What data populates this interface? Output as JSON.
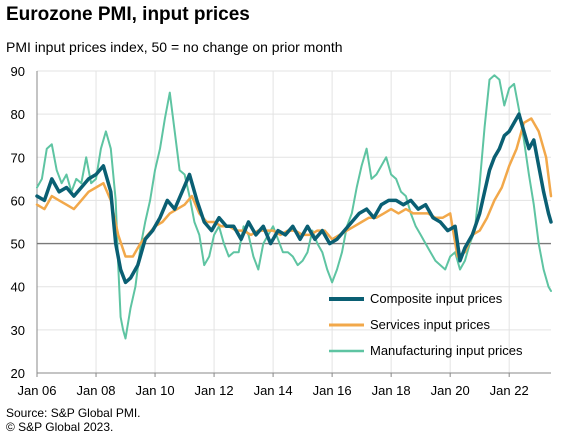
{
  "header": {
    "title": "Eurozone PMI, input prices",
    "subtitle": "PMI input prices index, 50 = no change on prior month"
  },
  "footer": {
    "source": "Source: S&P Global PMI.",
    "copyright": "© S&P Global 2023."
  },
  "chart_data": {
    "type": "line",
    "ylim": [
      20,
      90
    ],
    "yticks": [
      20,
      30,
      40,
      50,
      60,
      70,
      80,
      90
    ],
    "reference_line": 50,
    "xlim": [
      "2006-01",
      "2023-06"
    ],
    "x_tick_labels": [
      "Jan 06",
      "Jan 08",
      "Jan 10",
      "Jan 12",
      "Jan 14",
      "Jan 16",
      "Jan 18",
      "Jan 20",
      "Jan 22"
    ],
    "x_tick_positions": [
      "2006-01",
      "2008-01",
      "2010-01",
      "2012-01",
      "2014-01",
      "2016-01",
      "2018-01",
      "2020-01",
      "2022-01"
    ],
    "grid": true,
    "legend_position": "bottom-right",
    "series": [
      {
        "name": "Composite input prices",
        "color": "#0a5f73",
        "width": 3.5,
        "x": [
          "2006-01",
          "2006-04",
          "2006-07",
          "2006-10",
          "2007-01",
          "2007-04",
          "2007-07",
          "2007-10",
          "2008-01",
          "2008-04",
          "2008-07",
          "2008-09",
          "2008-11",
          "2009-01",
          "2009-03",
          "2009-06",
          "2009-09",
          "2009-12",
          "2010-03",
          "2010-06",
          "2010-09",
          "2010-12",
          "2011-03",
          "2011-06",
          "2011-09",
          "2011-12",
          "2012-03",
          "2012-06",
          "2012-09",
          "2012-12",
          "2013-03",
          "2013-06",
          "2013-09",
          "2013-12",
          "2014-03",
          "2014-06",
          "2014-09",
          "2014-12",
          "2015-03",
          "2015-06",
          "2015-09",
          "2015-12",
          "2016-03",
          "2016-06",
          "2016-09",
          "2016-12",
          "2017-03",
          "2017-06",
          "2017-09",
          "2017-12",
          "2018-03",
          "2018-06",
          "2018-09",
          "2018-12",
          "2019-03",
          "2019-06",
          "2019-09",
          "2019-12",
          "2020-03",
          "2020-05",
          "2020-07",
          "2020-10",
          "2021-01",
          "2021-03",
          "2021-05",
          "2021-07",
          "2021-09",
          "2021-11",
          "2022-01",
          "2022-03",
          "2022-05",
          "2022-07",
          "2022-09",
          "2022-11",
          "2023-01",
          "2023-03",
          "2023-05",
          "2023-06"
        ],
        "values": [
          61,
          60,
          65,
          62,
          63,
          61,
          63,
          65,
          66,
          68,
          62,
          50,
          44,
          41,
          42,
          45,
          51,
          53,
          56,
          60,
          58,
          62,
          66,
          60,
          55,
          53,
          56,
          54,
          54,
          51,
          55,
          52,
          54,
          50,
          53,
          52,
          54,
          51,
          54,
          51,
          53,
          50,
          51,
          53,
          55,
          57,
          58,
          56,
          59,
          60,
          60,
          59,
          60,
          58,
          59,
          56,
          55,
          53,
          54,
          46,
          49,
          52,
          57,
          62,
          67,
          70,
          72,
          75,
          76,
          78,
          80,
          76,
          72,
          74,
          68,
          62,
          57,
          55
        ]
      },
      {
        "name": "Services input prices",
        "color": "#f2a84a",
        "width": 2.5,
        "x": [
          "2006-01",
          "2006-04",
          "2006-07",
          "2006-10",
          "2007-01",
          "2007-04",
          "2007-07",
          "2007-10",
          "2008-01",
          "2008-04",
          "2008-07",
          "2008-10",
          "2009-01",
          "2009-04",
          "2009-07",
          "2009-10",
          "2010-01",
          "2010-04",
          "2010-07",
          "2010-10",
          "2011-01",
          "2011-04",
          "2011-07",
          "2011-10",
          "2012-01",
          "2012-04",
          "2012-07",
          "2012-10",
          "2013-01",
          "2013-04",
          "2013-07",
          "2013-10",
          "2014-01",
          "2014-04",
          "2014-07",
          "2014-10",
          "2015-01",
          "2015-04",
          "2015-07",
          "2015-10",
          "2016-01",
          "2016-04",
          "2016-07",
          "2016-10",
          "2017-01",
          "2017-04",
          "2017-07",
          "2017-10",
          "2018-01",
          "2018-04",
          "2018-07",
          "2018-10",
          "2019-01",
          "2019-04",
          "2019-07",
          "2019-10",
          "2020-01",
          "2020-04",
          "2020-07",
          "2020-10",
          "2021-01",
          "2021-04",
          "2021-07",
          "2021-10",
          "2022-01",
          "2022-04",
          "2022-07",
          "2022-10",
          "2023-01",
          "2023-04",
          "2023-06"
        ],
        "values": [
          59,
          58,
          61,
          60,
          59,
          58,
          60,
          62,
          63,
          64,
          60,
          52,
          47,
          47,
          50,
          52,
          54,
          55,
          57,
          58,
          59,
          61,
          57,
          55,
          55,
          54,
          54,
          53,
          53,
          52,
          53,
          53,
          53,
          52,
          53,
          53,
          52,
          52,
          53,
          53,
          51,
          52,
          53,
          54,
          55,
          56,
          56,
          57,
          58,
          57,
          58,
          57,
          57,
          57,
          56,
          56,
          57,
          47,
          48,
          52,
          53,
          56,
          60,
          63,
          68,
          72,
          78,
          79,
          76,
          70,
          61
        ]
      },
      {
        "name": "Manufacturing input prices",
        "color": "#5ec4a2",
        "width": 2,
        "x": [
          "2006-01",
          "2006-03",
          "2006-05",
          "2006-07",
          "2006-09",
          "2006-11",
          "2007-01",
          "2007-03",
          "2007-05",
          "2007-07",
          "2007-09",
          "2007-11",
          "2008-01",
          "2008-03",
          "2008-05",
          "2008-07",
          "2008-09",
          "2008-10",
          "2008-11",
          "2008-12",
          "2009-01",
          "2009-03",
          "2009-05",
          "2009-07",
          "2009-09",
          "2009-11",
          "2010-01",
          "2010-03",
          "2010-05",
          "2010-07",
          "2010-09",
          "2010-11",
          "2011-01",
          "2011-03",
          "2011-05",
          "2011-07",
          "2011-09",
          "2011-11",
          "2012-01",
          "2012-03",
          "2012-05",
          "2012-07",
          "2012-09",
          "2012-11",
          "2013-01",
          "2013-03",
          "2013-05",
          "2013-07",
          "2013-09",
          "2013-11",
          "2014-01",
          "2014-03",
          "2014-05",
          "2014-07",
          "2014-09",
          "2014-11",
          "2015-01",
          "2015-03",
          "2015-05",
          "2015-07",
          "2015-09",
          "2015-11",
          "2016-01",
          "2016-03",
          "2016-05",
          "2016-07",
          "2016-09",
          "2016-11",
          "2017-01",
          "2017-03",
          "2017-05",
          "2017-07",
          "2017-09",
          "2017-11",
          "2018-01",
          "2018-03",
          "2018-05",
          "2018-07",
          "2018-09",
          "2018-11",
          "2019-01",
          "2019-03",
          "2019-05",
          "2019-07",
          "2019-09",
          "2019-11",
          "2020-01",
          "2020-03",
          "2020-05",
          "2020-07",
          "2020-09",
          "2020-11",
          "2021-01",
          "2021-03",
          "2021-05",
          "2021-07",
          "2021-09",
          "2021-11",
          "2022-01",
          "2022-03",
          "2022-05",
          "2022-07",
          "2022-09",
          "2022-11",
          "2023-01",
          "2023-03",
          "2023-05",
          "2023-06"
        ],
        "values": [
          63,
          65,
          72,
          73,
          67,
          64,
          66,
          62,
          65,
          64,
          70,
          64,
          65,
          72,
          76,
          72,
          60,
          45,
          33,
          30,
          28,
          35,
          40,
          49,
          55,
          60,
          67,
          72,
          79,
          85,
          76,
          67,
          66,
          61,
          55,
          52,
          45,
          47,
          52,
          54,
          50,
          47,
          48,
          48,
          54,
          52,
          47,
          44,
          50,
          52,
          54,
          51,
          48,
          48,
          47,
          45,
          46,
          48,
          53,
          50,
          48,
          44,
          41,
          44,
          48,
          54,
          57,
          63,
          68,
          72,
          65,
          66,
          68,
          70,
          66,
          65,
          62,
          61,
          57,
          54,
          52,
          50,
          48,
          46,
          45,
          44,
          47,
          48,
          44,
          46,
          50,
          53,
          64,
          77,
          88,
          89,
          88,
          82,
          86,
          87,
          81,
          74,
          66,
          59,
          50,
          44,
          40,
          39
        ]
      }
    ]
  }
}
